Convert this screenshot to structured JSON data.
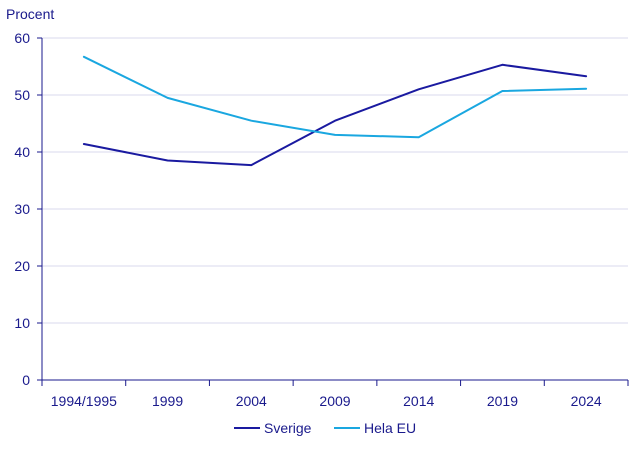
{
  "chart_data": {
    "type": "line",
    "ylabel": "Procent",
    "categories": [
      "1994/1995",
      "1999",
      "2004",
      "2009",
      "2014",
      "2019",
      "2024"
    ],
    "ylim": [
      0,
      60
    ],
    "yticks": [
      0,
      10,
      20,
      30,
      40,
      50,
      60
    ],
    "grid": true,
    "legend_position": "bottom-center",
    "series": [
      {
        "name": "Sverige",
        "color": "#1a1aa0",
        "values": [
          41.4,
          38.5,
          37.7,
          45.5,
          51.0,
          55.3,
          53.3
        ]
      },
      {
        "name": "Hela EU",
        "color": "#1aa7e0",
        "values": [
          56.7,
          49.5,
          45.5,
          43.0,
          42.6,
          50.7,
          51.1
        ]
      }
    ]
  }
}
